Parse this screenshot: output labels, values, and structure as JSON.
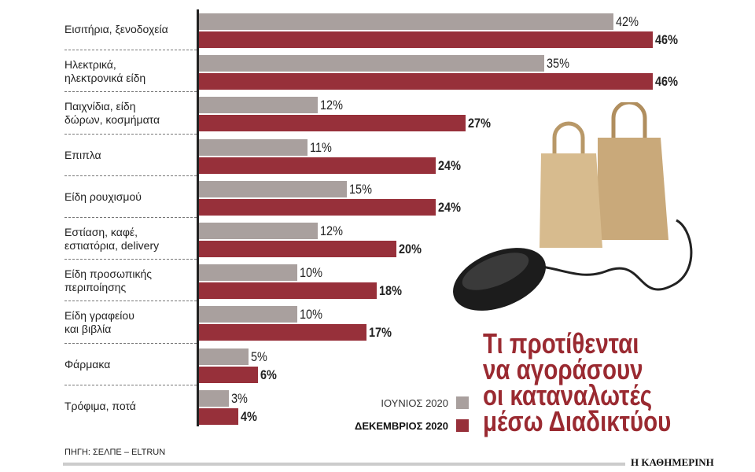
{
  "chart_data": {
    "type": "bar",
    "orientation": "horizontal",
    "title": "Τι προτίθενται να αγοράσουν οι καταναλωτές μέσω Διαδικτύου",
    "title_lines": [
      "Τι προτίθενται",
      "να αγοράσουν",
      "οι καταναλωτές",
      "μέσω Διαδικτύου"
    ],
    "categories": [
      "Εισιτήρια, ξενοδοχεία",
      "Ηλεκτρικά, ηλεκτρονικά είδη",
      "Παιχνίδια, είδη δώρων, κοσμήματα",
      "Επιπλα",
      "Είδη ρουχισμού",
      "Εστίαση, καφέ, εστιατόρια, delivery",
      "Είδη προσωπικής περιποίησης",
      "Είδη γραφείου και βιβλία",
      "Φάρμακα",
      "Τρόφιμα, ποτά"
    ],
    "category_lines": [
      [
        "Εισιτήρια, ξενοδοχεία"
      ],
      [
        "Ηλεκτρικά,",
        "ηλεκτρονικά είδη"
      ],
      [
        "Παιχνίδια, είδη",
        "δώρων, κοσμήματα"
      ],
      [
        "Επιπλα"
      ],
      [
        "Είδη ρουχισμού"
      ],
      [
        "Εστίαση, καφέ,",
        "εστιατόρια, delivery"
      ],
      [
        "Είδη προσωπικής",
        "περιποίησης"
      ],
      [
        "Είδη γραφείου",
        "και βιβλία"
      ],
      [
        "Φάρμακα"
      ],
      [
        "Τρόφιμα, ποτά"
      ]
    ],
    "series": [
      {
        "name": "ΙΟΥΝΙΟΣ 2020",
        "color": "#a9a09e",
        "values": [
          42,
          35,
          12,
          11,
          15,
          12,
          10,
          10,
          5,
          3
        ]
      },
      {
        "name": "ΔΕΚΕΜΒΡΙΟΣ 2020",
        "color": "#97303a",
        "values": [
          46,
          46,
          27,
          24,
          24,
          20,
          18,
          17,
          6,
          4
        ]
      }
    ],
    "unit": "%",
    "xlim": [
      0,
      46
    ],
    "grid": false,
    "legend": "bottom-right"
  },
  "source": "ΠΗΓΗ: ΣΕΛΠΕ – ELTRUN",
  "publisher": "Η ΚΑΘΗΜΕΡΙΝΗ"
}
